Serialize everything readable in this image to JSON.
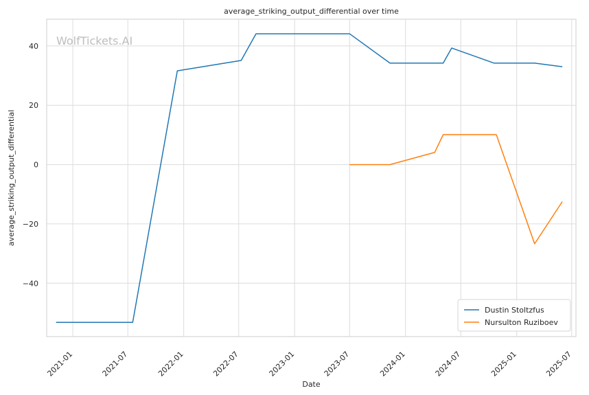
{
  "chart_data": {
    "type": "line",
    "title": "average_striking_output_differential over time",
    "xlabel": "Date",
    "ylabel": "average_striking_output_differential",
    "watermark": "WolfTickets.AI",
    "x_ticks": [
      "2021-01",
      "2021-07",
      "2022-01",
      "2022-07",
      "2023-01",
      "2023-07",
      "2024-01",
      "2024-07",
      "2025-01",
      "2025-07"
    ],
    "y_ticks": [
      -40,
      -20,
      0,
      20,
      40
    ],
    "ylim": [
      -58,
      49
    ],
    "xlim": [
      "2020-10-07",
      "2025-07-15"
    ],
    "grid": true,
    "legend_position": "lower-right",
    "series": [
      {
        "name": "Dustin Stoltzfus",
        "color": "#1f77b4",
        "points": [
          {
            "x": "2020-11-07",
            "y": -53.2
          },
          {
            "x": "2021-07-17",
            "y": -53.2
          },
          {
            "x": "2021-12-11",
            "y": 31.6
          },
          {
            "x": "2022-07-09",
            "y": 35.1
          },
          {
            "x": "2022-08-27",
            "y": 44.1
          },
          {
            "x": "2023-07-01",
            "y": 44.1
          },
          {
            "x": "2023-11-11",
            "y": 34.2
          },
          {
            "x": "2024-05-04",
            "y": 34.2
          },
          {
            "x": "2024-06-01",
            "y": 39.3
          },
          {
            "x": "2024-10-19",
            "y": 34.2
          },
          {
            "x": "2025-03-01",
            "y": 34.2
          },
          {
            "x": "2025-05-31",
            "y": 33.0
          }
        ]
      },
      {
        "name": "Nursulton Ruziboev",
        "color": "#ff7f0e",
        "points": [
          {
            "x": "2023-07-01",
            "y": 0.0
          },
          {
            "x": "2023-11-11",
            "y": 0.0
          },
          {
            "x": "2024-04-06",
            "y": 4.1
          },
          {
            "x": "2024-05-04",
            "y": 10.1
          },
          {
            "x": "2024-10-26",
            "y": 10.1
          },
          {
            "x": "2025-03-01",
            "y": -26.7
          },
          {
            "x": "2025-05-31",
            "y": -12.5
          }
        ]
      }
    ]
  }
}
